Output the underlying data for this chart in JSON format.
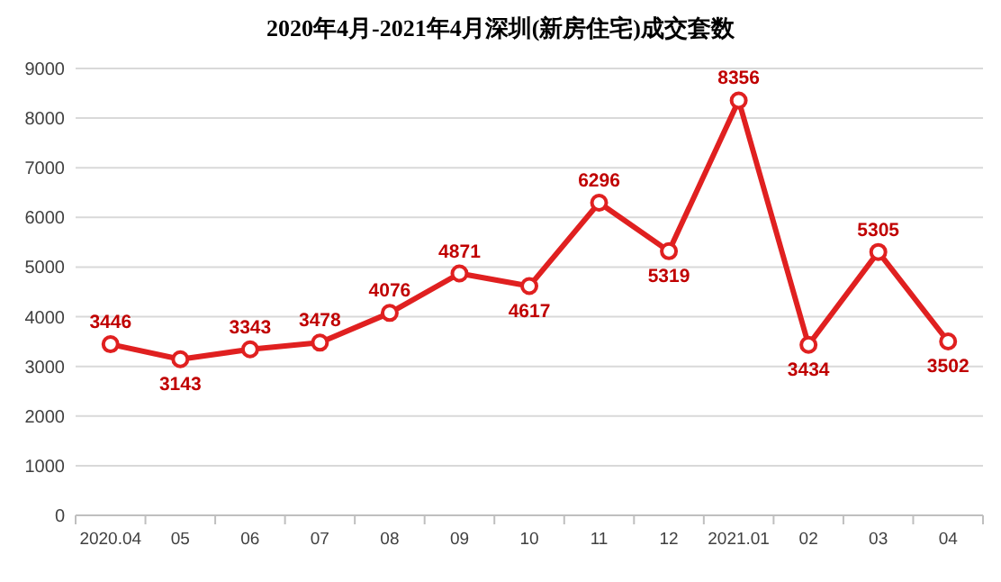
{
  "chart_data": {
    "type": "line",
    "title": "2020年4月-2021年4月深圳(新房住宅)成交套数",
    "categories": [
      "2020.04",
      "05",
      "06",
      "07",
      "08",
      "09",
      "10",
      "11",
      "12",
      "2021.01",
      "02",
      "03",
      "04"
    ],
    "series": [
      {
        "color": "#e02020",
        "values": [
          3446,
          3143,
          3343,
          3478,
          4076,
          4871,
          4617,
          6296,
          5319,
          8356,
          3434,
          5305,
          3502
        ]
      }
    ],
    "ylim": [
      0,
      9000
    ],
    "yticks": [
      0,
      1000,
      2000,
      3000,
      4000,
      5000,
      6000,
      7000,
      8000,
      9000
    ],
    "grid": "y",
    "marker": "circle",
    "line_style": "solid",
    "data_labels": true
  }
}
